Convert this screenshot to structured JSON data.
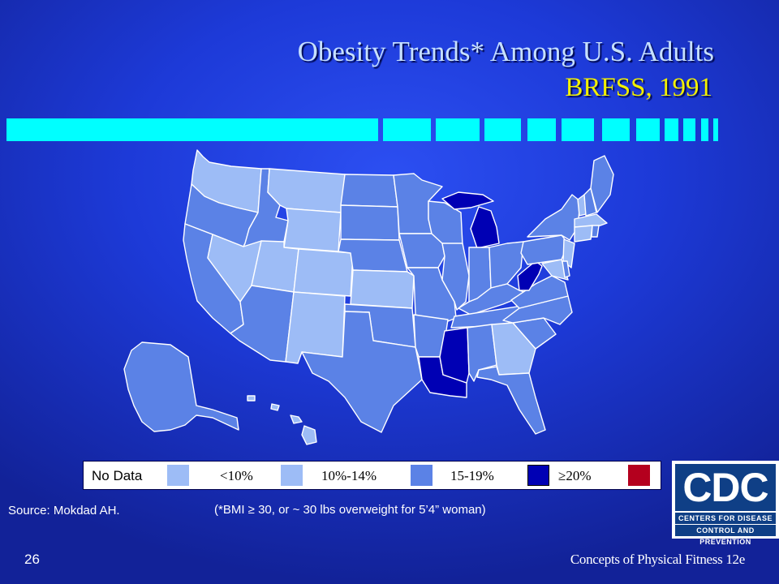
{
  "slide": {
    "title": "Obesity Trends* Among U.S. Adults",
    "subtitle": "BRFSS, 1991",
    "source": "Source: Mokdad AH.",
    "footnote": "(*BMI ≥ 30, or ~ 30 lbs overweight for 5’4” woman)",
    "page_number": "26",
    "footer": "Concepts of Physical Fitness 12e"
  },
  "legend": {
    "items": [
      {
        "label": "No Data",
        "color": "#9dbcf6"
      },
      {
        "label": "<10%",
        "color": "#9dbcf6"
      },
      {
        "label": "10%-14%",
        "color": "#5b82e6"
      },
      {
        "label": "15-19%",
        "color": "#0000b4"
      },
      {
        "label": "≥20%",
        "color": "#b4001e"
      }
    ]
  },
  "colors": {
    "background": "#2341e6",
    "title_text": "#c6e0ff",
    "subtitle_text": "#f2f000",
    "stripe": "#00ffff",
    "light": "#9dbcf6",
    "mid": "#5b82e6",
    "dark": "#0000b4",
    "high": "#b4001e"
  },
  "map_data": {
    "categories": {
      "10%-14%": [
        "Washington",
        "Montana",
        "Wyoming",
        "Nevada",
        "Utah",
        "Colorado",
        "New Mexico",
        "Kansas",
        "Georgia",
        "Connecticut",
        "Massachusetts",
        "New Jersey",
        "Maryland",
        "Vermont",
        "Hawaii"
      ],
      "15-19%": [
        "Oregon",
        "California",
        "Idaho",
        "Arizona",
        "North Dakota",
        "South Dakota",
        "Nebraska",
        "Minnesota",
        "Iowa",
        "Missouri",
        "Oklahoma",
        "Texas",
        "Arkansas",
        "Wisconsin",
        "Illinois",
        "Indiana",
        "Ohio",
        "Kentucky",
        "Tennessee",
        "Alabama",
        "Florida",
        "South Carolina",
        "North Carolina",
        "Virginia",
        "Pennsylvania",
        "New York",
        "Maine",
        "New Hampshire",
        "Rhode Island",
        "Delaware",
        "Alaska"
      ],
      "≥20%": [
        "Michigan",
        "Mississippi",
        "Louisiana",
        "West Virginia"
      ]
    }
  },
  "logo": {
    "text": "CDC",
    "line1": "CENTERS FOR DISEASE",
    "line2": "CONTROL AND PREVENTION"
  }
}
